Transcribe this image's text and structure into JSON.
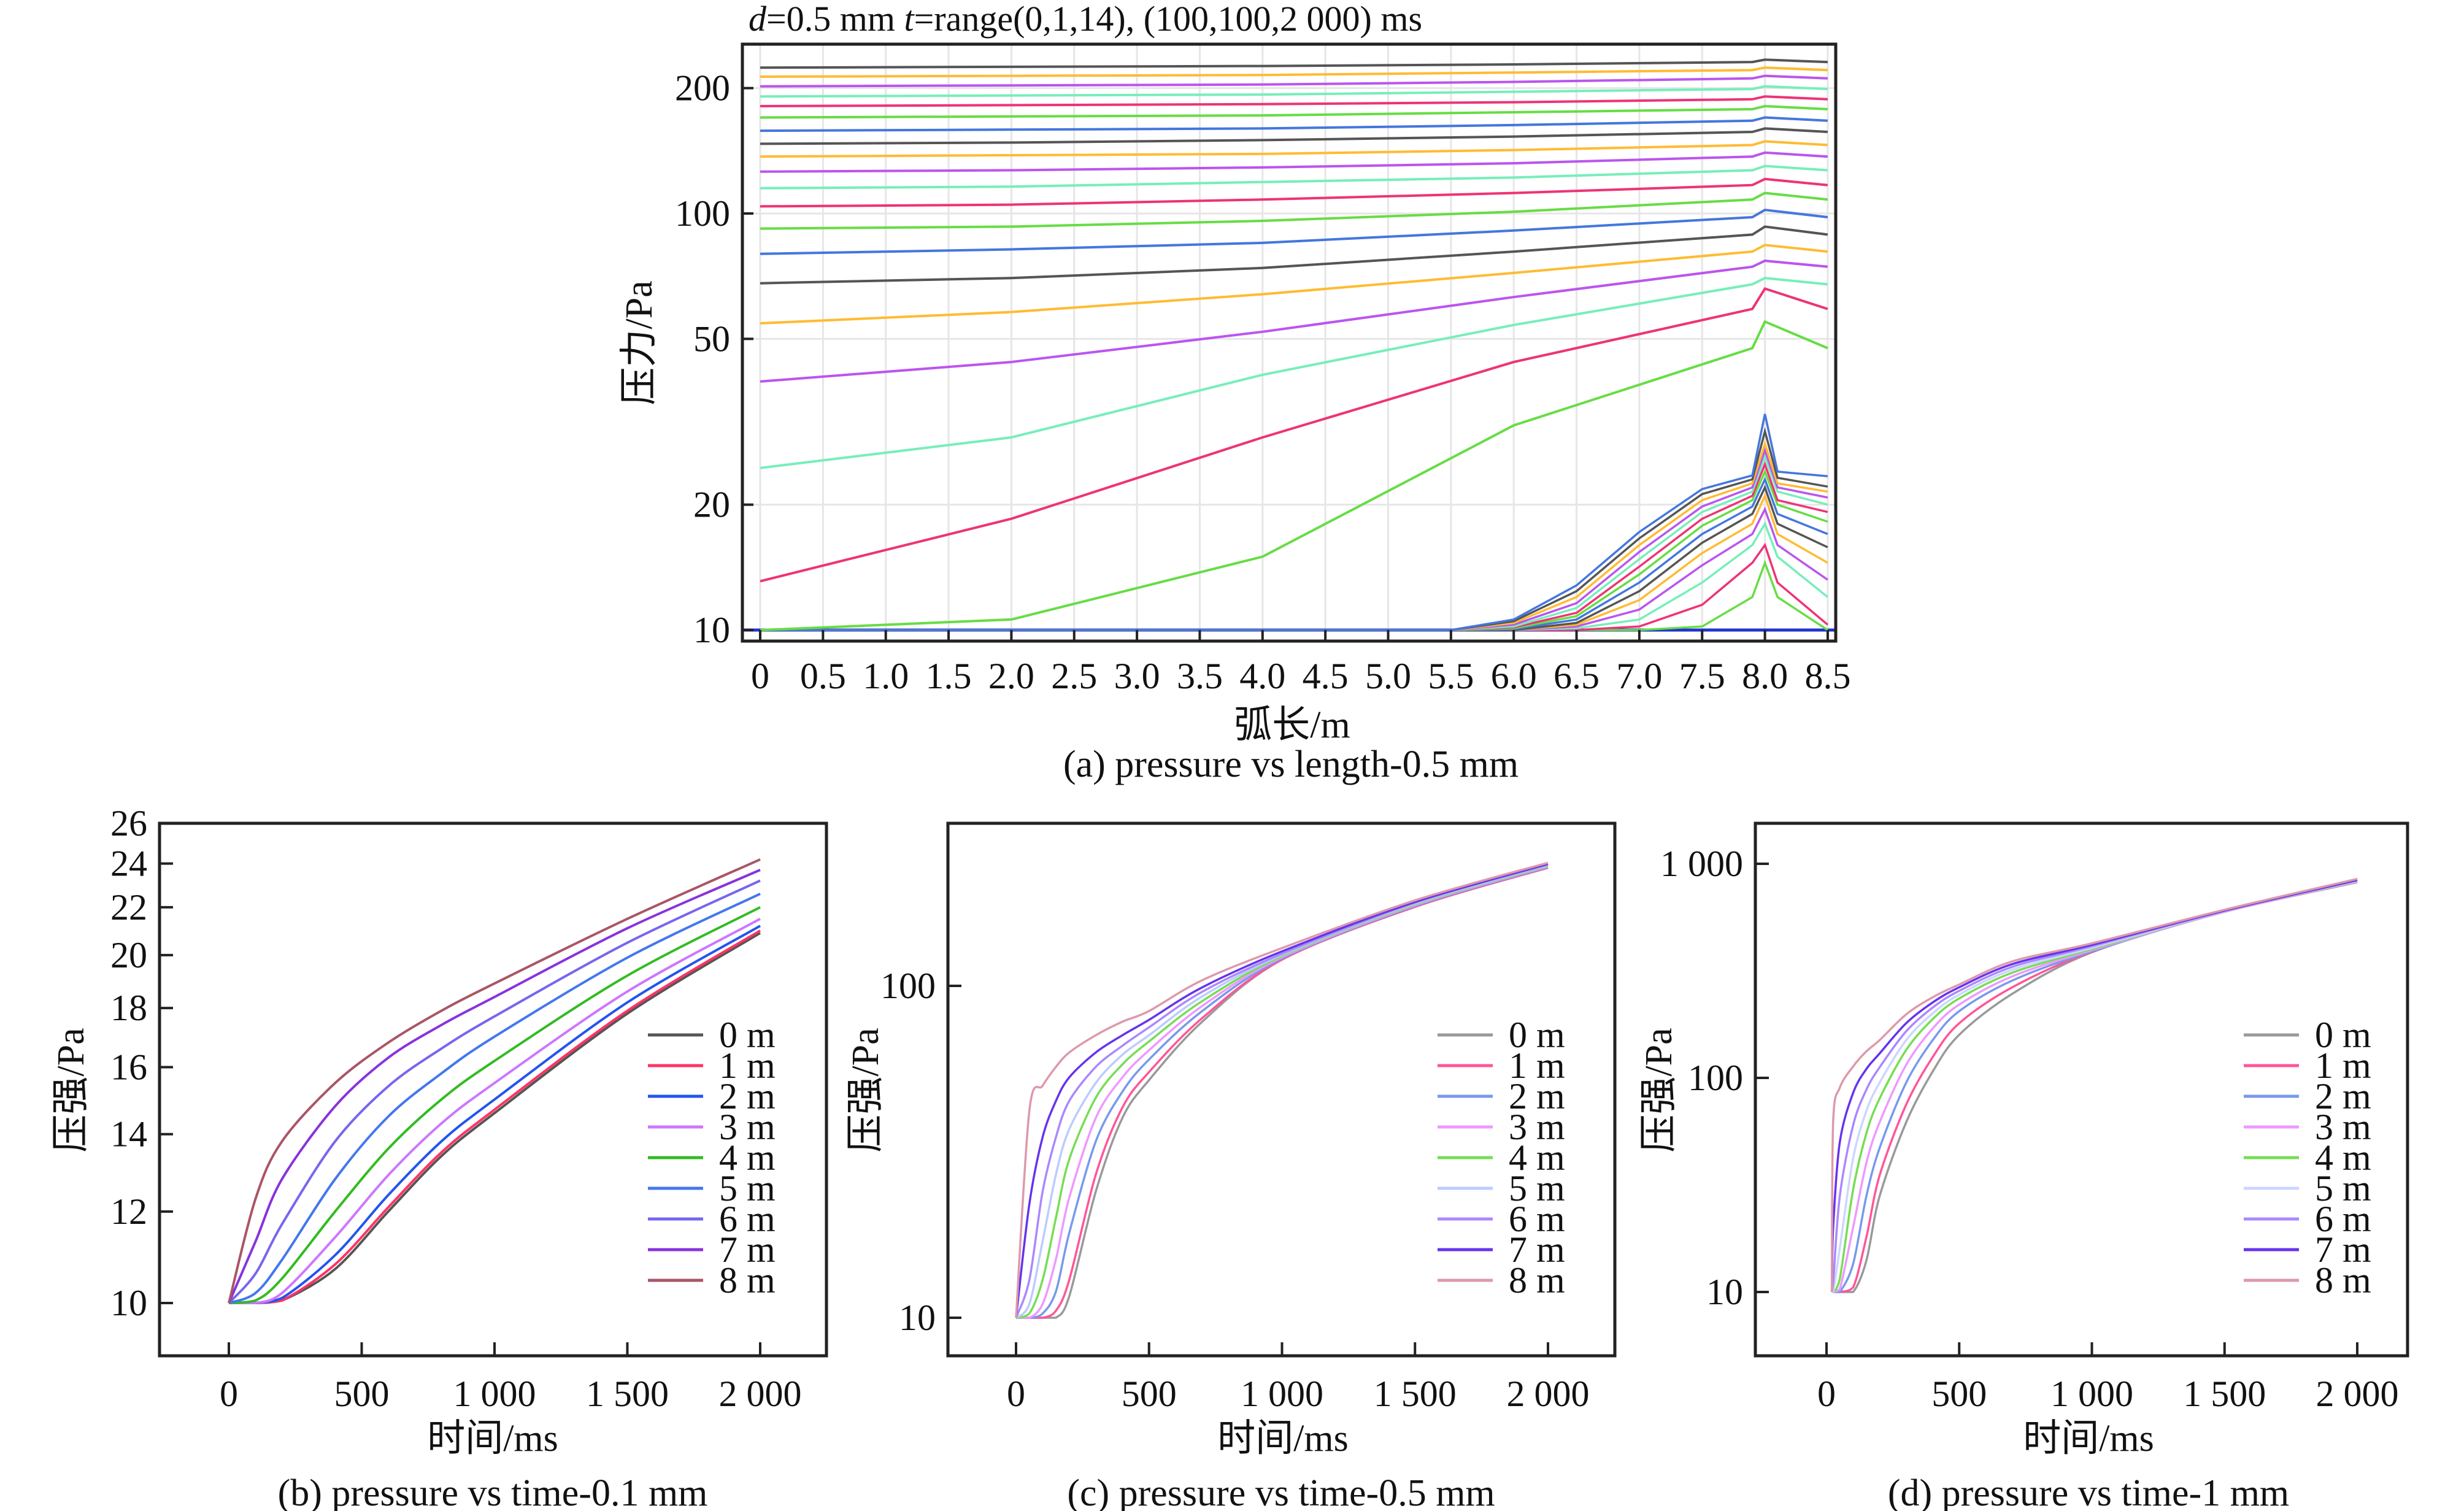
{
  "chart_data": [
    {
      "id": "a",
      "type": "line",
      "title_parts": [
        "d",
        "=0.5 mm ",
        "t",
        "=range(0,1,14), (100,100,2 000) ms"
      ],
      "xlabel": "弧长/m",
      "ylabel": "压力/Pa",
      "caption": "(a) pressure vs length-0.5 mm",
      "x_scale": "linear",
      "y_scale": "log",
      "xlim": [
        -0.1,
        8.6
      ],
      "ylim": [
        9.5,
        240
      ],
      "grid": true,
      "x_ticks": [
        0,
        0.5,
        1.0,
        1.5,
        2.0,
        2.5,
        3.0,
        3.5,
        4.0,
        4.5,
        5.0,
        5.5,
        6.0,
        6.5,
        7.0,
        7.5,
        8.0,
        8.5
      ],
      "x_tick_labels": [
        "0",
        "0.5",
        "1.0",
        "1.5",
        "2.0",
        "2.5",
        "3.0",
        "3.5",
        "4.0",
        "4.5",
        "5.0",
        "5.5",
        "6.0",
        "6.5",
        "7.0",
        "7.5",
        "8.0",
        "8.5"
      ],
      "y_ticks": [
        10,
        20,
        50,
        100,
        200
      ],
      "y_tick_labels": [
        "10",
        "20",
        "50",
        "100",
        "200"
      ],
      "palette": [
        "#66dd44",
        "#ee3377",
        "#77eebb",
        "#bb55ee",
        "#ffbb33",
        "#555555",
        "#4477dd"
      ],
      "series_x": [
        0,
        2,
        4,
        6,
        7.9,
        8.0,
        8.5
      ],
      "series": [
        {
          "values": [
            10,
            10.6,
            15,
            31,
            47.5,
            55,
            47.5
          ]
        },
        {
          "values": [
            13.1,
            18.5,
            29,
            44,
            59,
            66,
            59
          ]
        },
        {
          "values": [
            24.5,
            29,
            41,
            54,
            67.6,
            70,
            67.6
          ]
        },
        {
          "values": [
            39.5,
            44,
            52,
            63,
            74.5,
            77,
            74.5
          ]
        },
        {
          "values": [
            54.5,
            58,
            64,
            72,
            81,
            84,
            81
          ]
        },
        {
          "values": [
            68,
            70,
            74,
            81,
            89,
            93,
            89
          ]
        },
        {
          "values": [
            80,
            82,
            85,
            91,
            98,
            102,
            98
          ]
        },
        {
          "values": [
            92,
            93,
            96,
            101,
            108,
            112,
            108
          ]
        },
        {
          "values": [
            104,
            105,
            108,
            112,
            117,
            121,
            117
          ]
        },
        {
          "values": [
            115,
            116,
            119,
            122,
            127,
            130,
            127
          ]
        },
        {
          "values": [
            126,
            127,
            129,
            132,
            137,
            140,
            137
          ]
        },
        {
          "values": [
            137,
            138,
            139,
            142,
            146,
            149,
            146
          ]
        },
        {
          "values": [
            147,
            148,
            150,
            153,
            157,
            160,
            157
          ]
        },
        {
          "values": [
            158,
            159,
            160,
            163,
            167,
            170,
            167
          ]
        },
        {
          "values": [
            170,
            171,
            172,
            175,
            178,
            181,
            178
          ]
        },
        {
          "values": [
            181,
            182,
            183,
            185,
            188,
            191,
            188
          ]
        },
        {
          "values": [
            191,
            192,
            193,
            196,
            199,
            202,
            199
          ]
        },
        {
          "values": [
            202,
            203,
            204,
            207,
            211,
            214,
            211
          ]
        },
        {
          "values": [
            213,
            214,
            215,
            218,
            221,
            224,
            221
          ]
        },
        {
          "values": [
            224,
            225,
            226,
            228,
            231,
            234,
            231
          ]
        }
      ],
      "early_series_x": [
        0,
        5.5,
        6.0,
        6.5,
        7.0,
        7.5,
        7.9,
        8.0,
        8.1,
        8.5
      ],
      "early_series": [
        {
          "values": [
            10,
            10,
            10,
            10,
            10,
            10.2,
            12,
            14.5,
            12,
            10
          ]
        },
        {
          "values": [
            10,
            10,
            10,
            10,
            10.2,
            11.5,
            14.5,
            16,
            13,
            10.3
          ]
        },
        {
          "values": [
            10,
            10,
            10,
            10.1,
            10.6,
            13,
            16,
            18,
            15,
            12
          ]
        },
        {
          "values": [
            10,
            10,
            10,
            10.2,
            11.2,
            14.3,
            17,
            19.5,
            16,
            13.2
          ]
        },
        {
          "values": [
            10,
            10,
            10,
            10.3,
            11.8,
            15.3,
            18,
            21,
            17,
            14.5
          ]
        },
        {
          "values": [
            10,
            10,
            10,
            10.4,
            12.4,
            16.2,
            19,
            22,
            18,
            15.8
          ]
        },
        {
          "values": [
            10,
            10,
            10.05,
            10.6,
            13,
            17,
            19.8,
            23,
            19,
            17
          ]
        },
        {
          "values": [
            10,
            10,
            10.1,
            10.8,
            13.6,
            17.8,
            20.5,
            24,
            20,
            18.2
          ]
        },
        {
          "values": [
            10,
            10,
            10.15,
            11,
            14.2,
            18.5,
            21,
            25,
            20.5,
            19.2
          ]
        },
        {
          "values": [
            10,
            10,
            10.2,
            11.3,
            14.8,
            19.2,
            21.5,
            26,
            21.5,
            20
          ]
        },
        {
          "values": [
            10,
            10,
            10.3,
            11.6,
            15.4,
            19.8,
            22,
            27,
            22,
            20.8
          ]
        },
        {
          "values": [
            10,
            10,
            10.4,
            12,
            16,
            20.5,
            22.5,
            28,
            22.5,
            21.5
          ]
        },
        {
          "values": [
            10,
            10,
            10.5,
            12.4,
            16.6,
            21.2,
            23,
            30,
            23.2,
            22.1
          ]
        },
        {
          "values": [
            10,
            10,
            10.6,
            12.8,
            17.2,
            21.8,
            23.5,
            33,
            24,
            23.4
          ]
        }
      ]
    },
    {
      "id": "b",
      "type": "line",
      "xlabel": "时间/ms",
      "ylabel": "压强/Pa",
      "caption": "(b) pressure vs time-0.1 mm",
      "x_scale": "linear",
      "y_scale": "log",
      "xlim": [
        -250,
        2250
      ],
      "ylim": [
        9,
        26
      ],
      "grid": false,
      "legend": "right",
      "x_ticks": [
        0,
        500,
        1000,
        1500,
        2000
      ],
      "x_tick_labels": [
        "0",
        "500",
        "1 000",
        "1 500",
        "2 000"
      ],
      "y_ticks": [
        10,
        12,
        14,
        16,
        18,
        20,
        22,
        24,
        26
      ],
      "y_tick_labels": [
        "10",
        "12",
        "14",
        "16",
        "18",
        "20",
        "22",
        "24",
        "26"
      ],
      "x": [
        0,
        100,
        200,
        400,
        600,
        800,
        1000,
        1500,
        2000
      ],
      "series": [
        {
          "name": "0 m",
          "color": "#555555",
          "values": [
            10,
            10,
            10.05,
            10.7,
            12.0,
            13.4,
            14.6,
            17.8,
            20.9
          ]
        },
        {
          "name": "1 m",
          "color": "#ff3366",
          "values": [
            10,
            10,
            10.05,
            10.8,
            12.1,
            13.5,
            14.7,
            17.9,
            21.0
          ]
        },
        {
          "name": "2 m",
          "color": "#2255ee",
          "values": [
            10,
            10,
            10.1,
            11.0,
            12.4,
            13.8,
            15.0,
            18.2,
            21.2
          ]
        },
        {
          "name": "3 m",
          "color": "#cc77ff",
          "values": [
            10,
            10,
            10.2,
            11.4,
            12.9,
            14.3,
            15.5,
            18.6,
            21.5
          ]
        },
        {
          "name": "4 m",
          "color": "#33bb22",
          "values": [
            10,
            10.05,
            10.5,
            12.0,
            13.6,
            15.0,
            16.2,
            19.2,
            22.0
          ]
        },
        {
          "name": "5 m",
          "color": "#4477ee",
          "values": [
            10,
            10.2,
            10.9,
            12.8,
            14.5,
            15.8,
            17.0,
            19.9,
            22.6
          ]
        },
        {
          "name": "6 m",
          "color": "#7766ee",
          "values": [
            10,
            10.6,
            11.7,
            13.8,
            15.4,
            16.6,
            17.7,
            20.5,
            23.2
          ]
        },
        {
          "name": "7 m",
          "color": "#8833dd",
          "values": [
            10,
            11.3,
            12.8,
            14.8,
            16.3,
            17.4,
            18.4,
            21.1,
            23.7
          ]
        },
        {
          "name": "8 m",
          "color": "#aa5566",
          "values": [
            10,
            12.3,
            13.8,
            15.5,
            16.8,
            17.9,
            18.9,
            21.5,
            24.2
          ]
        }
      ]
    },
    {
      "id": "c",
      "type": "line",
      "xlabel": "时间/ms",
      "ylabel": "压强/Pa",
      "caption": "(c) pressure vs time-0.5 mm",
      "x_scale": "linear",
      "y_scale": "log",
      "xlim": [
        -250,
        2250
      ],
      "ylim": [
        8.5,
        360
      ],
      "grid": false,
      "legend": "right",
      "x_ticks": [
        0,
        500,
        1000,
        1500,
        2000
      ],
      "x_tick_labels": [
        "0",
        "500",
        "1 000",
        "1 500",
        "2 000"
      ],
      "y_ticks": [
        10,
        100
      ],
      "y_tick_labels": [
        "10",
        "100"
      ],
      "x": [
        0,
        50,
        100,
        150,
        200,
        300,
        400,
        500,
        700,
        1000,
        1500,
        2000
      ],
      "series": [
        {
          "name": "0 m",
          "color": "#999999",
          "values": [
            10,
            10,
            10,
            10,
            11.6,
            24,
            40,
            52,
            78,
            120,
            173,
            227
          ]
        },
        {
          "name": "1 m",
          "color": "#ff5599",
          "values": [
            10,
            10,
            10,
            10.5,
            13,
            27,
            43,
            55,
            80,
            120,
            173,
            227
          ]
        },
        {
          "name": "2 m",
          "color": "#7799ee",
          "values": [
            10,
            10,
            10.3,
            12,
            18,
            34,
            48,
            60,
            84,
            121,
            174,
            228
          ]
        },
        {
          "name": "3 m",
          "color": "#ee99ff",
          "values": [
            10,
            10,
            11,
            15,
            23,
            40,
            53,
            64,
            87,
            122,
            175,
            229
          ]
        },
        {
          "name": "4 m",
          "color": "#77dd55",
          "values": [
            10,
            10.3,
            13,
            20,
            30,
            46,
            58,
            68,
            90,
            123,
            176,
            230
          ]
        },
        {
          "name": "5 m",
          "color": "#bbccff",
          "values": [
            10,
            11,
            17,
            27,
            37,
            51,
            62,
            71,
            93,
            124,
            177,
            231
          ]
        },
        {
          "name": "6 m",
          "color": "#aa88ff",
          "values": [
            10,
            13,
            24,
            35,
            45,
            57,
            66,
            75,
            96,
            125,
            178,
            232
          ]
        },
        {
          "name": "7 m",
          "color": "#6633ee",
          "values": [
            10,
            22,
            35,
            45,
            53,
            63,
            71,
            79,
            99,
            127,
            179,
            233
          ]
        },
        {
          "name": "8 m",
          "color": "#dd99aa",
          "values": [
            10,
            42,
            50,
            57,
            63,
            71,
            78,
            84,
            104,
            130,
            181,
            235
          ]
        }
      ]
    },
    {
      "id": "d",
      "type": "line",
      "xlabel": "时间/ms",
      "ylabel": "压强/Pa",
      "caption": "(d) pressure vs time-1 mm",
      "x_scale": "linear",
      "y_scale": "log",
      "xlim": [
        -250,
        2250
      ],
      "ylim": [
        5,
        1400
      ],
      "grid": false,
      "legend": "right",
      "x_ticks": [
        0,
        500,
        1000,
        1500,
        2000
      ],
      "x_tick_labels": [
        "0",
        "500",
        "1 000",
        "1 500",
        "2 000"
      ],
      "y_ticks": [
        10,
        100,
        1000
      ],
      "y_tick_labels": [
        "10",
        "100",
        "1 000"
      ],
      "x": [
        20,
        25,
        50,
        100,
        150,
        200,
        300,
        400,
        500,
        700,
        1000,
        1500,
        2000
      ],
      "series": [
        {
          "name": "0 m",
          "color": "#999999",
          "values": [
            10,
            10,
            10,
            10,
            14,
            28,
            62,
            107,
            159,
            247,
            386,
            597,
            820
          ]
        },
        {
          "name": "1 m",
          "color": "#ff5599",
          "values": [
            10,
            10,
            10,
            10.5,
            18,
            35,
            75,
            125,
            180,
            265,
            388,
            597,
            820
          ]
        },
        {
          "name": "2 m",
          "color": "#7799ee",
          "values": [
            10,
            10,
            10,
            13.5,
            28,
            47,
            95,
            150,
            205,
            285,
            390,
            598,
            822
          ]
        },
        {
          "name": "3 m",
          "color": "#ee99ff",
          "values": [
            10,
            10,
            10.3,
            20,
            40,
            62,
            115,
            170,
            220,
            298,
            395,
            598,
            823
          ]
        },
        {
          "name": "4 m",
          "color": "#77dd55",
          "values": [
            10,
            10,
            11.5,
            30,
            55,
            80,
            135,
            188,
            235,
            310,
            400,
            600,
            826
          ]
        },
        {
          "name": "5 m",
          "color": "#ccd6ff",
          "values": [
            10,
            10,
            16,
            42,
            70,
            95,
            150,
            200,
            245,
            320,
            405,
            600,
            830
          ]
        },
        {
          "name": "6 m",
          "color": "#aa88ff",
          "values": [
            10,
            11,
            28,
            60,
            88,
            112,
            165,
            213,
            255,
            330,
            412,
            602,
            835
          ]
        },
        {
          "name": "7 m",
          "color": "#6633ee",
          "values": [
            10,
            20,
            50,
            85,
            110,
            130,
            180,
            225,
            265,
            340,
            418,
            605,
            840
          ]
        },
        {
          "name": "8 m",
          "color": "#dd99aa",
          "values": [
            10,
            62,
            90,
            113,
            133,
            150,
            198,
            238,
            273,
            350,
            425,
            610,
            850
          ]
        }
      ]
    }
  ]
}
